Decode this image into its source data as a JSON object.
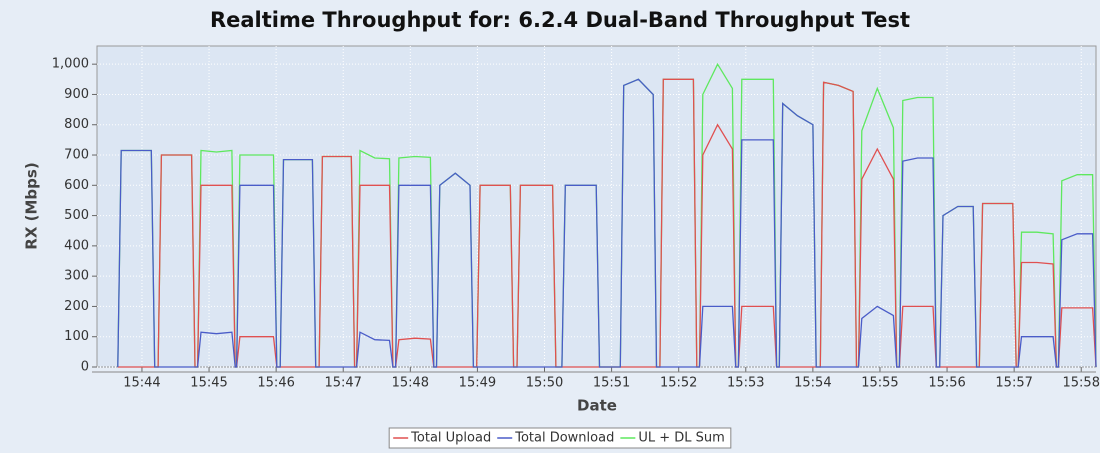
{
  "chart_data": {
    "type": "line",
    "title": "Realtime Throughput for: 6.2.4 Dual-Band Throughput Test",
    "xlabel": "Date",
    "ylabel": "RX (Mbps)",
    "x": [
      43.64,
      43.69,
      43.92,
      44.14,
      44.19,
      44.24,
      44.29,
      44.52,
      44.74,
      44.79,
      44.83,
      44.88,
      45.11,
      45.34,
      45.39,
      45.41,
      45.46,
      45.71,
      45.96,
      46.01,
      46.06,
      46.11,
      46.33,
      46.54,
      46.59,
      46.64,
      46.69,
      46.9,
      47.12,
      47.17,
      47.2,
      47.25,
      47.47,
      47.69,
      47.74,
      47.78,
      47.83,
      48.07,
      48.3,
      48.35,
      48.39,
      48.44,
      48.67,
      48.89,
      48.94,
      48.99,
      49.04,
      49.27,
      49.49,
      49.54,
      49.59,
      49.64,
      49.88,
      50.12,
      50.17,
      50.26,
      50.31,
      50.54,
      50.77,
      50.82,
      51.13,
      51.18,
      51.4,
      51.62,
      51.67,
      51.72,
      51.77,
      52.0,
      52.22,
      52.27,
      52.31,
      52.36,
      52.58,
      52.8,
      52.85,
      52.89,
      52.94,
      53.17,
      53.41,
      53.46,
      53.5,
      53.55,
      53.77,
      54.0,
      54.05,
      54.11,
      54.16,
      54.38,
      54.6,
      54.65,
      54.68,
      54.73,
      54.96,
      55.2,
      55.25,
      55.29,
      55.34,
      55.56,
      55.79,
      55.84,
      55.89,
      55.94,
      56.16,
      56.39,
      56.44,
      56.48,
      56.53,
      56.75,
      56.98,
      57.03,
      57.06,
      57.11,
      57.34,
      57.58,
      57.63,
      57.66,
      57.71,
      57.94,
      58.17,
      58.22
    ],
    "series": [
      {
        "name": "UL + DL Sum",
        "color": "#5ee85e",
        "values": [
          0,
          715,
          715,
          715,
          0,
          0,
          700,
          700,
          700,
          0,
          0,
          715,
          710,
          715,
          0,
          0,
          700,
          700,
          700,
          0,
          0,
          685,
          685,
          685,
          0,
          0,
          695,
          695,
          695,
          0,
          0,
          715,
          690,
          688,
          0,
          0,
          690,
          695,
          692,
          0,
          0,
          600,
          640,
          600,
          0,
          0,
          600,
          600,
          600,
          0,
          0,
          600,
          600,
          600,
          0,
          0,
          600,
          600,
          600,
          0,
          0,
          930,
          950,
          900,
          0,
          0,
          950,
          950,
          950,
          0,
          0,
          900,
          1000,
          920,
          0,
          0,
          950,
          950,
          950,
          0,
          0,
          870,
          830,
          800,
          0,
          0,
          940,
          930,
          910,
          0,
          0,
          780,
          920,
          790,
          0,
          0,
          880,
          890,
          890,
          0,
          0,
          500,
          530,
          530,
          0,
          0,
          540,
          540,
          540,
          0,
          0,
          445,
          445,
          440,
          0,
          0,
          615,
          635,
          635,
          0
        ]
      },
      {
        "name": "Total Upload",
        "color": "#e05050",
        "values": [
          0,
          0,
          0,
          0,
          0,
          0,
          700,
          700,
          700,
          0,
          0,
          600,
          600,
          600,
          0,
          0,
          100,
          100,
          100,
          0,
          0,
          0,
          0,
          0,
          0,
          0,
          695,
          695,
          695,
          0,
          0,
          600,
          600,
          600,
          0,
          0,
          90,
          95,
          92,
          0,
          0,
          0,
          0,
          0,
          0,
          0,
          600,
          600,
          600,
          0,
          0,
          600,
          600,
          600,
          0,
          0,
          0,
          0,
          0,
          0,
          0,
          0,
          0,
          0,
          0,
          0,
          950,
          950,
          950,
          0,
          0,
          700,
          800,
          720,
          0,
          0,
          200,
          200,
          200,
          0,
          0,
          0,
          0,
          0,
          0,
          0,
          940,
          930,
          910,
          0,
          0,
          620,
          720,
          620,
          0,
          0,
          200,
          200,
          200,
          0,
          0,
          0,
          0,
          0,
          0,
          0,
          540,
          540,
          540,
          0,
          0,
          345,
          345,
          340,
          0,
          0,
          195,
          195,
          195,
          0
        ]
      },
      {
        "name": "Total Download",
        "color": "#4a5cc8",
        "values": [
          0,
          715,
          715,
          715,
          0,
          0,
          0,
          0,
          0,
          0,
          0,
          115,
          110,
          115,
          0,
          0,
          600,
          600,
          600,
          0,
          0,
          685,
          685,
          685,
          0,
          0,
          0,
          0,
          0,
          0,
          0,
          115,
          90,
          88,
          0,
          0,
          600,
          600,
          600,
          0,
          0,
          600,
          640,
          600,
          0,
          0,
          0,
          0,
          0,
          0,
          0,
          0,
          0,
          0,
          0,
          0,
          600,
          600,
          600,
          0,
          0,
          930,
          950,
          900,
          0,
          0,
          0,
          0,
          0,
          0,
          0,
          200,
          200,
          200,
          0,
          0,
          750,
          750,
          750,
          0,
          0,
          870,
          830,
          800,
          0,
          0,
          0,
          0,
          0,
          0,
          0,
          160,
          200,
          170,
          0,
          0,
          680,
          690,
          690,
          0,
          0,
          500,
          530,
          530,
          0,
          0,
          0,
          0,
          0,
          0,
          0,
          100,
          100,
          100,
          0,
          0,
          420,
          440,
          440,
          0
        ]
      }
    ],
    "legend_order": [
      1,
      2,
      0
    ],
    "xlim": [
      43.33,
      58.22
    ],
    "xticks": [
      {
        "value": 44,
        "label": "15:44"
      },
      {
        "value": 45,
        "label": "15:45"
      },
      {
        "value": 46,
        "label": "15:46"
      },
      {
        "value": 47,
        "label": "15:47"
      },
      {
        "value": 48,
        "label": "15:48"
      },
      {
        "value": 49,
        "label": "15:49"
      },
      {
        "value": 50,
        "label": "15:50"
      },
      {
        "value": 51,
        "label": "15:51"
      },
      {
        "value": 52,
        "label": "15:52"
      },
      {
        "value": 53,
        "label": "15:53"
      },
      {
        "value": 54,
        "label": "15:54"
      },
      {
        "value": 55,
        "label": "15:55"
      },
      {
        "value": 56,
        "label": "15:56"
      },
      {
        "value": 57,
        "label": "15:57"
      },
      {
        "value": 58,
        "label": "15:58"
      }
    ],
    "ylim": [
      0,
      1060
    ],
    "yticks": [
      0,
      100,
      200,
      300,
      400,
      500,
      600,
      700,
      800,
      900,
      {
        "value": 1000,
        "label": "1,000"
      }
    ],
    "grid": true,
    "legend": "bottom"
  }
}
